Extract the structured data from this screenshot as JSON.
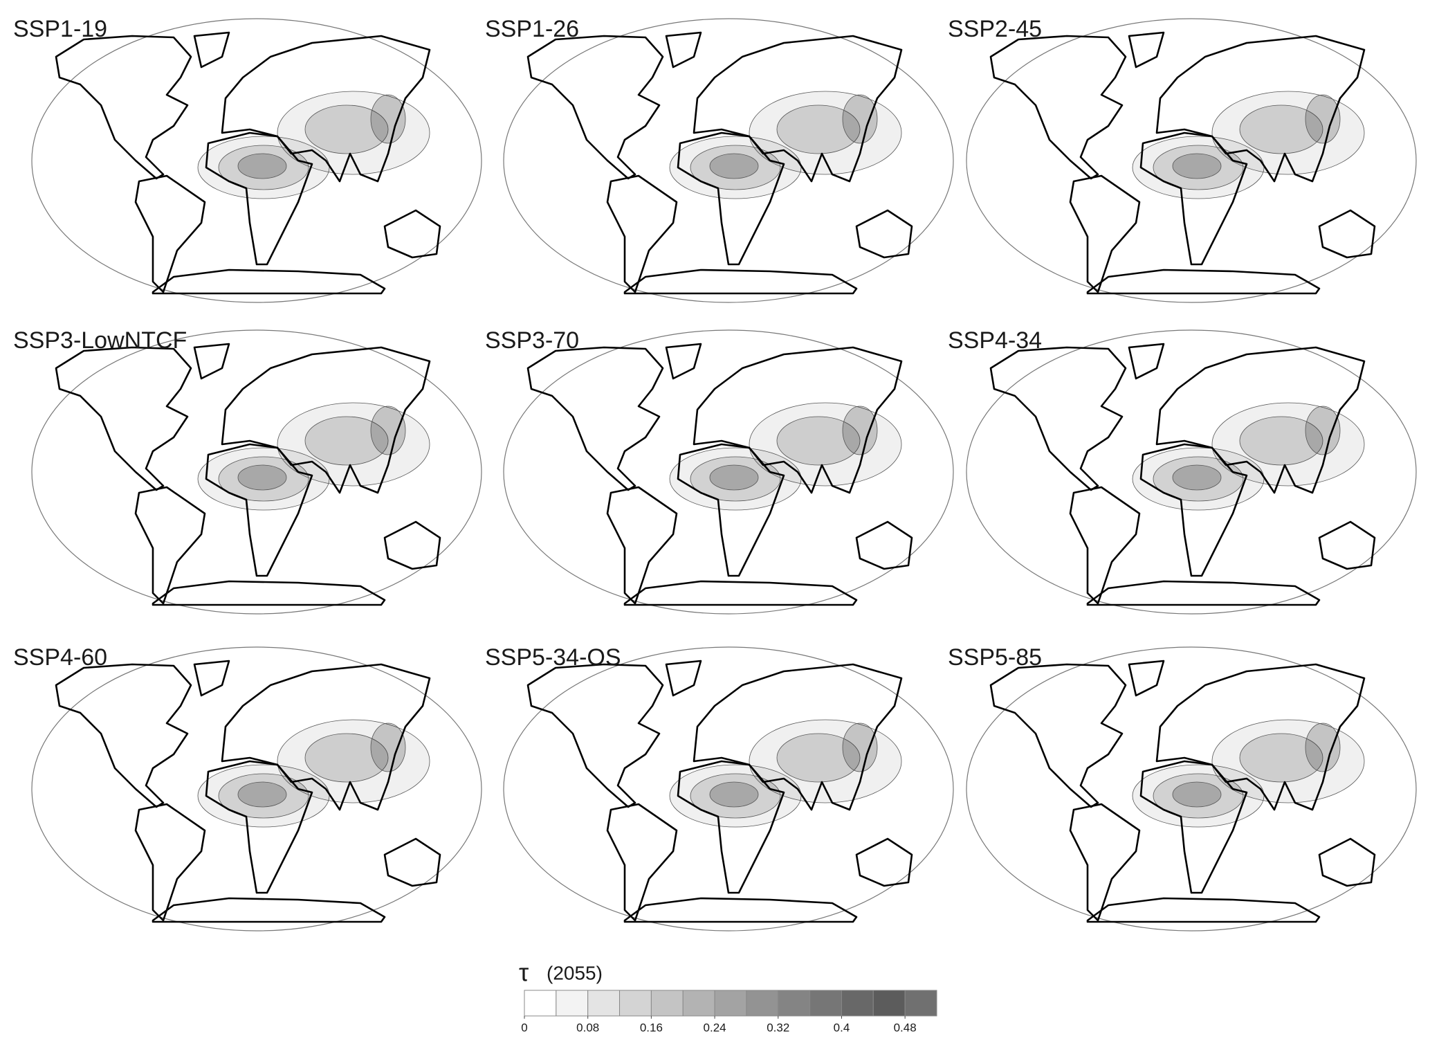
{
  "panels": [
    {
      "title": "SSP1-19"
    },
    {
      "title": "SSP1-26"
    },
    {
      "title": "SSP2-45"
    },
    {
      "title": "SSP3-LowNTCF"
    },
    {
      "title": "SSP3-70"
    },
    {
      "title": "SSP4-34"
    },
    {
      "title": "SSP4-60"
    },
    {
      "title": "SSP5-34-OS"
    },
    {
      "title": "SSP5-85"
    }
  ],
  "colorbar": {
    "symbol": "τ",
    "label": "(2055)",
    "range": [
      0,
      0.52
    ],
    "ticks": [
      0,
      0.08,
      0.16,
      0.24,
      0.32,
      0.4,
      0.48
    ],
    "colors": [
      "#ffffff",
      "#f3f3f3",
      "#e4e4e4",
      "#d4d4d4",
      "#c4c4c4",
      "#b3b3b3",
      "#a3a3a3",
      "#939393",
      "#848484",
      "#767676",
      "#686868",
      "#5c5c5c",
      "#707070"
    ]
  }
}
